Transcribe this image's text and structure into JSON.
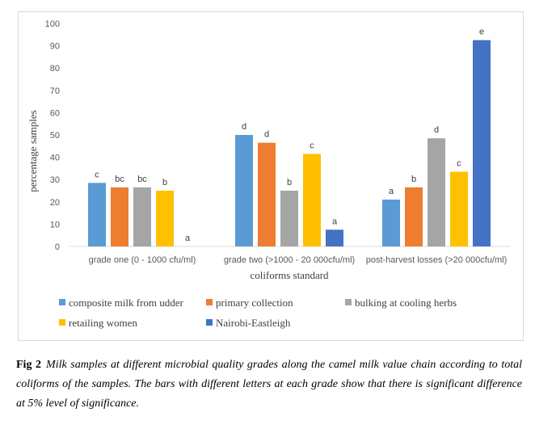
{
  "chart_data": {
    "type": "bar",
    "title": "",
    "xlabel": "coliforms  standard",
    "ylabel": "percentage samples",
    "ylim": [
      0,
      100
    ],
    "yticks": [
      0,
      10,
      20,
      30,
      40,
      50,
      60,
      70,
      80,
      90,
      100
    ],
    "grid": false,
    "legend_placement": "bottom",
    "categories": [
      "grade one (0 - 1000 cfu/ml)",
      "grade two (>1000 - 20 000cfu/ml)",
      "post-harvest losses (>20 000cfu/ml)"
    ],
    "series": [
      {
        "name": "composite milk from udder",
        "color": "#5b9bd5",
        "values": [
          28.5,
          50,
          21
        ],
        "letters": [
          "c",
          "d",
          "a"
        ]
      },
      {
        "name": "primary collection",
        "color": "#ed7d31",
        "values": [
          26.5,
          46.5,
          26.5
        ],
        "letters": [
          "bc",
          "d",
          "b"
        ]
      },
      {
        "name": "bulking at cooling herbs",
        "color": "#a5a5a5",
        "values": [
          26.5,
          25,
          48.5
        ],
        "letters": [
          "bc",
          "b",
          "d"
        ]
      },
      {
        "name": "retailing women",
        "color": "#ffc000",
        "values": [
          25,
          41.5,
          33.5
        ],
        "letters": [
          "b",
          "c",
          "c"
        ]
      },
      {
        "name": "Nairobi-Eastleigh",
        "color": "#4472c4",
        "values": [
          0,
          7.5,
          92.5
        ],
        "letters": [
          "a",
          "a",
          "e"
        ]
      }
    ]
  },
  "caption": {
    "label": "Fig 2",
    "text": "Milk samples at different microbial quality grades along the camel milk value chain according to total coliforms of the samples. The bars with different letters at each grade show that there is significant difference at 5% level of significance."
  }
}
